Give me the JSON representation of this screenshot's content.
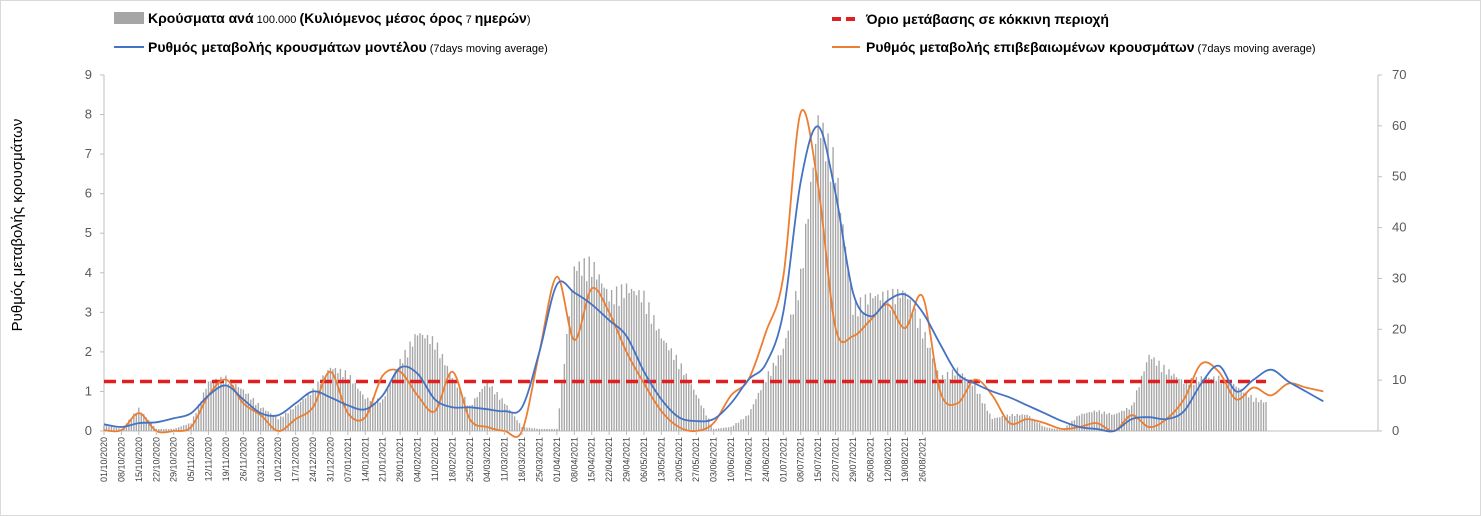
{
  "chart_data": {
    "type": "bar",
    "ylabel": "Ρυθμός μεταβολής κρουσμάτων",
    "ylim": [
      0,
      9
    ],
    "y2lim": [
      0,
      70
    ],
    "yticks": [
      "0",
      "1",
      "2",
      "3",
      "4",
      "5",
      "6",
      "7",
      "8",
      "9"
    ],
    "y2ticks": [
      "0",
      "10",
      "20",
      "30",
      "40",
      "50",
      "60",
      "70"
    ],
    "grid": false,
    "legend": [
      {
        "kind": "bar",
        "bold": "Κρούσματα ανά",
        "small": " 100.000 ",
        "bold2": "(Κυλιόμενος μέσος όρος",
        "small2": " 7 ",
        "bold3": "ημερών",
        "small3": ")",
        "color": "#a6a6a6"
      },
      {
        "kind": "dash",
        "bold": "Όριο μετάβασης σε κόκκινη περιοχή",
        "color": "#e02020"
      },
      {
        "kind": "line",
        "bold": "Ρυθμός μεταβολής κρουσμάτων μοντέλου",
        "small": " (7days moving average)",
        "color": "#4472c4"
      },
      {
        "kind": "line",
        "bold": "Ρυθμός μεταβολής επιβεβαιωμένων κρουσμάτων",
        "small": " (7days moving average)",
        "color": "#ed7d31"
      }
    ],
    "x_tick_labels": [
      "01/10/2020",
      "08/10/2020",
      "15/10/2020",
      "22/10/2020",
      "29/10/2020",
      "05/11/2020",
      "12/11/2020",
      "19/11/2020",
      "26/11/2020",
      "03/12/2020",
      "10/12/2020",
      "17/12/2020",
      "24/12/2020",
      "31/12/2020",
      "07/01/2021",
      "14/01/2021",
      "21/01/2021",
      "28/01/2021",
      "04/02/2021",
      "11/02/2021",
      "18/02/2021",
      "25/02/2021",
      "04/03/2021",
      "11/03/2021",
      "18/03/2021",
      "25/03/2021",
      "01/04/2021",
      "08/04/2021",
      "15/04/2021",
      "22/04/2021",
      "29/04/2021",
      "06/05/2021",
      "13/05/2021",
      "20/05/2021",
      "27/05/2021",
      "03/06/2021",
      "10/06/2021",
      "17/06/2021",
      "24/06/2021",
      "01/07/2021",
      "08/07/2021",
      "15/07/2021",
      "22/07/2021",
      "29/07/2021",
      "05/08/2021",
      "12/08/2021",
      "19/08/2021",
      "26/08/2021"
    ],
    "threshold": 1.25,
    "series": [
      {
        "name": "Κρούσματα ανά 100.000 (Κυλιόμενος μέσος όρος 7 ημερών)",
        "type": "bar",
        "axis": "y",
        "color": "#a6a6a6",
        "points": [
          [
            0,
            0.15
          ],
          [
            7,
            0.05
          ],
          [
            14,
            0.55
          ],
          [
            21,
            0.05
          ],
          [
            28,
            0.05
          ],
          [
            35,
            0.2
          ],
          [
            42,
            1.2
          ],
          [
            49,
            1.3
          ],
          [
            56,
            1.0
          ],
          [
            63,
            0.6
          ],
          [
            70,
            0.3
          ],
          [
            77,
            0.6
          ],
          [
            84,
            1.0
          ],
          [
            91,
            1.55
          ],
          [
            98,
            1.4
          ],
          [
            105,
            0.8
          ],
          [
            112,
            0.75
          ],
          [
            119,
            1.7
          ],
          [
            126,
            2.4
          ],
          [
            133,
            2.2
          ],
          [
            140,
            1.3
          ],
          [
            147,
            0.6
          ],
          [
            154,
            1.2
          ],
          [
            161,
            0.7
          ],
          [
            168,
            0.1
          ],
          [
            175,
            0.05
          ],
          [
            182,
            0.05
          ],
          [
            189,
            4.0
          ],
          [
            196,
            4.1
          ],
          [
            203,
            3.3
          ],
          [
            210,
            3.5
          ],
          [
            217,
            3.3
          ],
          [
            224,
            2.3
          ],
          [
            231,
            1.7
          ],
          [
            238,
            0.9
          ],
          [
            245,
            0.05
          ],
          [
            252,
            0.1
          ],
          [
            259,
            0.4
          ],
          [
            266,
            1.3
          ],
          [
            273,
            2.0
          ],
          [
            280,
            3.8
          ],
          [
            287,
            7.6
          ],
          [
            294,
            6.5
          ],
          [
            301,
            3.0
          ],
          [
            308,
            3.3
          ],
          [
            315,
            3.3
          ],
          [
            322,
            3.4
          ],
          [
            329,
            2.5
          ],
          [
            336,
            1.3
          ],
          [
            343,
            1.5
          ],
          [
            350,
            1.1
          ],
          [
            357,
            0.3
          ],
          [
            364,
            0.4
          ],
          [
            371,
            0.4
          ],
          [
            378,
            0.1
          ],
          [
            385,
            0.02
          ],
          [
            392,
            0.4
          ],
          [
            399,
            0.5
          ],
          [
            406,
            0.4
          ],
          [
            413,
            0.6
          ],
          [
            420,
            1.85
          ],
          [
            427,
            1.5
          ],
          [
            434,
            1.2
          ],
          [
            441,
            1.3
          ],
          [
            448,
            1.3
          ],
          [
            455,
            1.1
          ],
          [
            462,
            0.8
          ],
          [
            467,
            0.7
          ]
        ]
      },
      {
        "name": "Όριο μετάβασης σε κόκκινη περιοχή",
        "type": "line",
        "axis": "y",
        "color": "#e02020",
        "points": [
          [
            0,
            1.25
          ],
          [
            467,
            1.25
          ]
        ]
      },
      {
        "name": "Ρυθμός μεταβολής κρουσμάτων μοντέλου (7days moving average)",
        "type": "line",
        "axis": "y",
        "color": "#4472c4",
        "points": [
          [
            0,
            0.17
          ],
          [
            7,
            0.1
          ],
          [
            14,
            0.2
          ],
          [
            21,
            0.22
          ],
          [
            28,
            0.32
          ],
          [
            35,
            0.45
          ],
          [
            42,
            0.9
          ],
          [
            49,
            1.15
          ],
          [
            56,
            0.8
          ],
          [
            63,
            0.45
          ],
          [
            70,
            0.4
          ],
          [
            77,
            0.7
          ],
          [
            84,
            1.0
          ],
          [
            91,
            0.85
          ],
          [
            98,
            0.65
          ],
          [
            105,
            0.55
          ],
          [
            112,
            0.9
          ],
          [
            119,
            1.6
          ],
          [
            126,
            1.45
          ],
          [
            133,
            0.8
          ],
          [
            140,
            0.6
          ],
          [
            147,
            0.6
          ],
          [
            154,
            0.55
          ],
          [
            161,
            0.5
          ],
          [
            168,
            0.6
          ],
          [
            175,
            2.0
          ],
          [
            182,
            3.7
          ],
          [
            189,
            3.5
          ],
          [
            196,
            3.2
          ],
          [
            203,
            2.8
          ],
          [
            210,
            2.4
          ],
          [
            217,
            1.5
          ],
          [
            224,
            0.8
          ],
          [
            231,
            0.35
          ],
          [
            238,
            0.25
          ],
          [
            245,
            0.3
          ],
          [
            252,
            0.7
          ],
          [
            259,
            1.3
          ],
          [
            266,
            1.7
          ],
          [
            273,
            3.0
          ],
          [
            280,
            6.3
          ],
          [
            287,
            7.7
          ],
          [
            294,
            6.0
          ],
          [
            301,
            3.5
          ],
          [
            308,
            2.9
          ],
          [
            315,
            3.3
          ],
          [
            322,
            3.45
          ],
          [
            329,
            3.0
          ],
          [
            336,
            2.2
          ],
          [
            343,
            1.45
          ],
          [
            350,
            1.2
          ],
          [
            357,
            1.0
          ],
          [
            364,
            0.85
          ],
          [
            371,
            0.65
          ],
          [
            378,
            0.45
          ],
          [
            385,
            0.25
          ],
          [
            392,
            0.1
          ],
          [
            399,
            0.05
          ],
          [
            406,
            0.0
          ],
          [
            413,
            0.3
          ],
          [
            420,
            0.35
          ],
          [
            427,
            0.3
          ],
          [
            434,
            0.5
          ],
          [
            441,
            1.2
          ],
          [
            448,
            1.65
          ],
          [
            455,
            1.0
          ],
          [
            462,
            1.3
          ],
          [
            469,
            1.55
          ],
          [
            476,
            1.25
          ],
          [
            483,
            1.0
          ],
          [
            490,
            0.75
          ]
        ]
      },
      {
        "name": "Ρυθμός μεταβολής επιβεβαιωμένων κρουσμάτων (7days moving average)",
        "type": "line",
        "axis": "y",
        "color": "#ed7d31",
        "points": [
          [
            0,
            0.02
          ],
          [
            7,
            0.02
          ],
          [
            14,
            0.45
          ],
          [
            21,
            0.0
          ],
          [
            28,
            0.0
          ],
          [
            35,
            0.1
          ],
          [
            42,
            0.9
          ],
          [
            49,
            1.3
          ],
          [
            56,
            0.7
          ],
          [
            63,
            0.4
          ],
          [
            70,
            0.0
          ],
          [
            77,
            0.3
          ],
          [
            84,
            0.6
          ],
          [
            91,
            1.5
          ],
          [
            98,
            0.45
          ],
          [
            105,
            0.35
          ],
          [
            112,
            1.4
          ],
          [
            119,
            1.5
          ],
          [
            126,
            0.9
          ],
          [
            133,
            0.5
          ],
          [
            140,
            1.5
          ],
          [
            147,
            0.3
          ],
          [
            154,
            0.1
          ],
          [
            161,
            0.0
          ],
          [
            168,
            0.0
          ],
          [
            175,
            2.0
          ],
          [
            182,
            3.9
          ],
          [
            189,
            2.3
          ],
          [
            196,
            3.6
          ],
          [
            203,
            3.0
          ],
          [
            210,
            2.0
          ],
          [
            217,
            1.2
          ],
          [
            224,
            0.5
          ],
          [
            231,
            0.1
          ],
          [
            238,
            0.0
          ],
          [
            245,
            0.2
          ],
          [
            252,
            0.9
          ],
          [
            259,
            1.3
          ],
          [
            266,
            2.5
          ],
          [
            273,
            3.9
          ],
          [
            280,
            8.05
          ],
          [
            287,
            6.2
          ],
          [
            294,
            2.6
          ],
          [
            301,
            2.4
          ],
          [
            308,
            2.8
          ],
          [
            315,
            3.2
          ],
          [
            322,
            2.6
          ],
          [
            329,
            3.4
          ],
          [
            336,
            1.0
          ],
          [
            343,
            0.7
          ],
          [
            350,
            1.3
          ],
          [
            357,
            0.9
          ],
          [
            364,
            0.2
          ],
          [
            371,
            0.3
          ],
          [
            378,
            0.2
          ],
          [
            385,
            0.05
          ],
          [
            392,
            0.1
          ],
          [
            399,
            0.2
          ],
          [
            406,
            0.0
          ],
          [
            413,
            0.4
          ],
          [
            420,
            0.1
          ],
          [
            427,
            0.3
          ],
          [
            434,
            0.8
          ],
          [
            441,
            1.7
          ],
          [
            448,
            1.5
          ],
          [
            455,
            0.8
          ],
          [
            462,
            1.1
          ],
          [
            469,
            0.9
          ],
          [
            476,
            1.2
          ],
          [
            483,
            1.1
          ],
          [
            490,
            1.0
          ]
        ]
      }
    ]
  }
}
